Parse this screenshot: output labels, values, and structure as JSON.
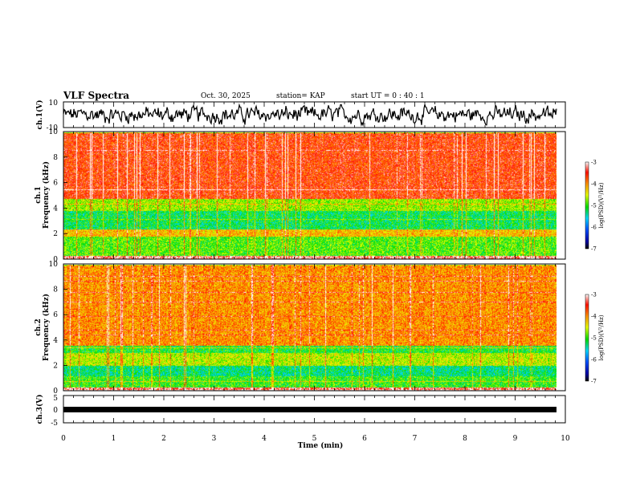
{
  "header": {
    "title": "VLF Spectra",
    "date": "Oct. 30, 2025",
    "station": "station= KAP",
    "start_ut": "start  UT  =   0 : 40 : 1"
  },
  "chart_data": [
    {
      "type": "line",
      "name": "ch1-waveform",
      "ylabel": "ch.1(V)",
      "ylim": [
        -10,
        10
      ],
      "yticks": [
        "10",
        "-10"
      ],
      "xlim": [
        0,
        10
      ],
      "description_series": "voltage vs time"
    },
    {
      "type": "heatmap",
      "name": "ch1-spectrogram",
      "ylabel": "ch.1\nFrequency (kHz)",
      "ylabel_lines": [
        "ch.1",
        "Frequency (kHz)"
      ],
      "ylim": [
        0,
        10
      ],
      "yticks": [
        "0",
        "2",
        "4",
        "6",
        "8",
        "10"
      ],
      "xlim": [
        0,
        10
      ],
      "colorbar": {
        "label": "log(PSD)(V²/Hz)",
        "range": [
          -7,
          -3
        ],
        "ticks": [
          "-3",
          "-4",
          "-5",
          "-6",
          "-7"
        ]
      },
      "bands_khz": [
        {
          "from": 0,
          "to": 0.3,
          "level": -3.2
        },
        {
          "from": 0.3,
          "to": 1.8,
          "level": -4.9
        },
        {
          "from": 1.8,
          "to": 2.4,
          "level": -4.2
        },
        {
          "from": 2.4,
          "to": 3.8,
          "level": -5.2
        },
        {
          "from": 3.8,
          "to": 4.8,
          "level": -4.7
        },
        {
          "from": 4.8,
          "to": 10,
          "level": -3.6
        }
      ]
    },
    {
      "type": "heatmap",
      "name": "ch2-spectrogram",
      "ylabel": "ch.2\nFrequency (kHz)",
      "ylabel_lines": [
        "ch.2",
        "Frequency (kHz)"
      ],
      "ylim": [
        0,
        10
      ],
      "yticks": [
        "0",
        "2",
        "4",
        "6",
        "8",
        "10"
      ],
      "xlim": [
        0,
        10
      ],
      "colorbar": {
        "label": "log(PSD)(V²/Hz)",
        "range": [
          -7,
          -3
        ],
        "ticks": [
          "-3",
          "-4",
          "-5",
          "-6",
          "-7"
        ]
      },
      "bands_khz": [
        {
          "from": 0,
          "to": 0.3,
          "level": -3.3
        },
        {
          "from": 0.3,
          "to": 1.2,
          "level": -5.0
        },
        {
          "from": 1.2,
          "to": 2.0,
          "level": -5.3
        },
        {
          "from": 2.0,
          "to": 3.0,
          "level": -4.6
        },
        {
          "from": 3.0,
          "to": 3.6,
          "level": -5.1
        },
        {
          "from": 3.6,
          "to": 10,
          "level": -4.0
        }
      ]
    },
    {
      "type": "line",
      "name": "ch3-waveform",
      "ylabel": "ch.3(V)",
      "ylim": [
        -5,
        5
      ],
      "yticks": [
        "5",
        "0",
        "-5"
      ],
      "xlim": [
        0,
        10
      ],
      "baseline_v": 0,
      "xlabel": "Time (min)",
      "xticks": [
        "0",
        "1",
        "2",
        "3",
        "4",
        "5",
        "6",
        "7",
        "8",
        "9",
        "10"
      ]
    }
  ]
}
